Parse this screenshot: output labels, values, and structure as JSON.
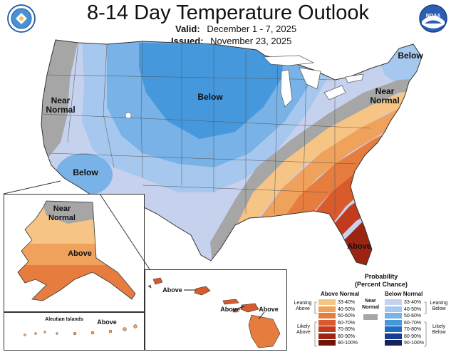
{
  "header": {
    "title": "8-14 Day Temperature Outlook",
    "valid_label": "Valid:",
    "valid_value": "December 1 - 7, 2025",
    "issued_label": "Issued:",
    "issued_value": "November 23, 2025",
    "left_logo_icon": "department-of-commerce-seal-icon",
    "right_logo_icon": "noaa-logo-icon",
    "right_logo_text": "NOAA"
  },
  "map_labels": {
    "near_normal_west": "Near\nNormal",
    "below_north": "Below",
    "below_southwest": "Below",
    "below_northeast": "Below",
    "near_normal_east": "Near\nNormal",
    "above_florida": "Above",
    "alaska_near_normal": "Near\nNormal",
    "alaska_above": "Above",
    "hawaii_above_1": "Above",
    "hawaii_above_2": "Above",
    "hawaii_above_3": "Above",
    "aleutian_islands": "Aleutian Islands",
    "aleutian_above": "Above"
  },
  "legend": {
    "title": "Probability",
    "subtitle": "(Percent Chance)",
    "above_header": "Above Normal",
    "below_header": "Below Normal",
    "leaning_above": "Leaning\nAbove",
    "likely_above": "Likely\nAbove",
    "leaning_below": "Leaning\nBelow",
    "likely_below": "Likely\nBelow",
    "near_normal": "Near\nNormal",
    "near_normal_color": "#a6a6a6",
    "above_bins": [
      {
        "label": "33-40%",
        "color": "#f6c485"
      },
      {
        "label": "40-50%",
        "color": "#f0a15b"
      },
      {
        "label": "50-60%",
        "color": "#e67d3f"
      },
      {
        "label": "60-70%",
        "color": "#d95a2b"
      },
      {
        "label": "70-80%",
        "color": "#c23b1c"
      },
      {
        "label": "80-90%",
        "color": "#9b2412"
      },
      {
        "label": "90-100%",
        "color": "#6e1409"
      }
    ],
    "below_bins": [
      {
        "label": "33-40%",
        "color": "#c6d1ee"
      },
      {
        "label": "40-50%",
        "color": "#a6c8ee"
      },
      {
        "label": "50-60%",
        "color": "#78b2e6"
      },
      {
        "label": "60-70%",
        "color": "#4698dd"
      },
      {
        "label": "70-80%",
        "color": "#1f6cc4"
      },
      {
        "label": "80-90%",
        "color": "#163c93"
      },
      {
        "label": "90-100%",
        "color": "#15215c"
      }
    ]
  }
}
